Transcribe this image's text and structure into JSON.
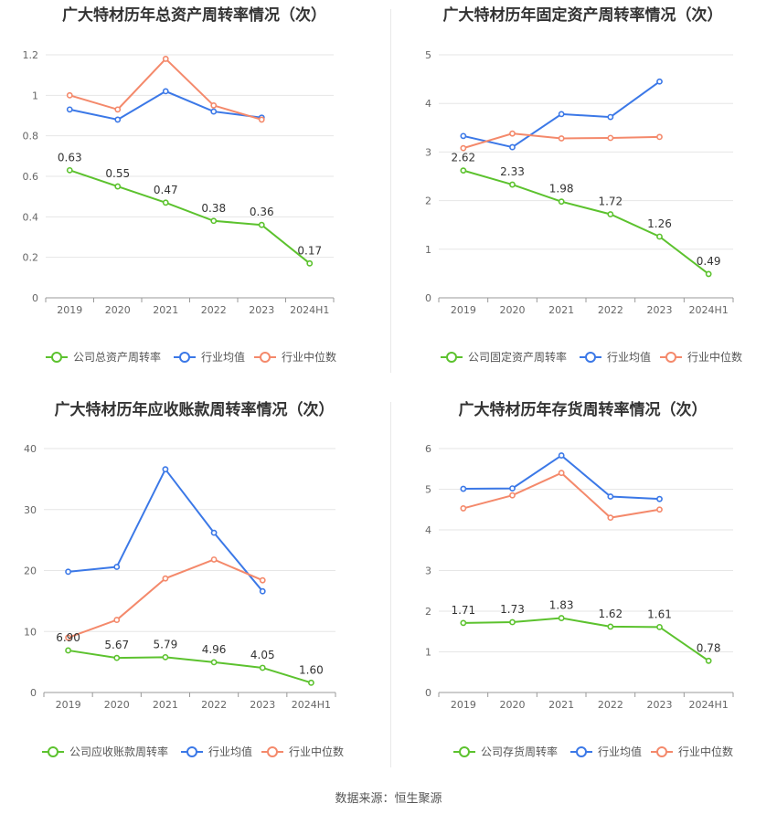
{
  "colors": {
    "company": "#5cc22e",
    "industry_avg": "#3b78e7",
    "industry_median": "#f4896b",
    "grid": "#e6e6e6",
    "axis": "#999999"
  },
  "footer": {
    "source": "数据来源：恒生聚源"
  },
  "chart_data": [
    {
      "type": "line",
      "title": "广大特材历年总资产周转率情况（次）",
      "categories": [
        "2019",
        "2020",
        "2021",
        "2022",
        "2023",
        "2024H1"
      ],
      "ylim": [
        0,
        1.2
      ],
      "yticks": [
        "0",
        "0.2",
        "0.4",
        "0.6",
        "0.8",
        "1",
        "1.2"
      ],
      "ytick_values": [
        0,
        0.2,
        0.4,
        0.6,
        0.8,
        1.0,
        1.2
      ],
      "series": [
        {
          "name": "公司总资产周转率",
          "color": "#5cc22e",
          "values": [
            0.63,
            0.55,
            0.47,
            0.38,
            0.36,
            0.17
          ],
          "labels": [
            "0.63",
            "0.55",
            "0.47",
            "0.38",
            "0.36",
            "0.17"
          ]
        },
        {
          "name": "行业均值",
          "color": "#3b78e7",
          "values": [
            0.93,
            0.88,
            1.02,
            0.92,
            0.89,
            null
          ]
        },
        {
          "name": "行业中位数",
          "color": "#f4896b",
          "values": [
            1.0,
            0.93,
            1.18,
            0.95,
            0.88,
            null
          ]
        }
      ],
      "legend": "bottom"
    },
    {
      "type": "line",
      "title": "广大特材历年固定资产周转率情况（次）",
      "categories": [
        "2019",
        "2020",
        "2021",
        "2022",
        "2023",
        "2024H1"
      ],
      "ylim": [
        0,
        5
      ],
      "yticks": [
        "0",
        "1",
        "2",
        "3",
        "4",
        "5"
      ],
      "ytick_values": [
        0,
        1,
        2,
        3,
        4,
        5
      ],
      "series": [
        {
          "name": "公司固定资产周转率",
          "color": "#5cc22e",
          "values": [
            2.62,
            2.33,
            1.98,
            1.72,
            1.26,
            0.49
          ],
          "labels": [
            "2.62",
            "2.33",
            "1.98",
            "1.72",
            "1.26",
            "0.49"
          ]
        },
        {
          "name": "行业均值",
          "color": "#3b78e7",
          "values": [
            3.33,
            3.1,
            3.78,
            3.72,
            4.45,
            null
          ]
        },
        {
          "name": "行业中位数",
          "color": "#f4896b",
          "values": [
            3.08,
            3.38,
            3.28,
            3.29,
            3.31,
            null
          ]
        }
      ],
      "legend": "bottom"
    },
    {
      "type": "line",
      "title": "广大特材历年应收账款周转率情况（次）",
      "categories": [
        "2019",
        "2020",
        "2021",
        "2022",
        "2023",
        "2024H1"
      ],
      "ylim": [
        0,
        40
      ],
      "yticks": [
        "0",
        "10",
        "20",
        "30",
        "40"
      ],
      "ytick_values": [
        0,
        10,
        20,
        30,
        40
      ],
      "series": [
        {
          "name": "公司应收账款周转率",
          "color": "#5cc22e",
          "values": [
            6.9,
            5.67,
            5.79,
            4.96,
            4.05,
            1.6
          ],
          "labels": [
            "6.90",
            "5.67",
            "5.79",
            "4.96",
            "4.05",
            "1.60"
          ]
        },
        {
          "name": "行业均值",
          "color": "#3b78e7",
          "values": [
            19.8,
            20.6,
            36.6,
            26.2,
            16.6,
            null
          ]
        },
        {
          "name": "行业中位数",
          "color": "#f4896b",
          "values": [
            9.0,
            11.9,
            18.7,
            21.8,
            18.4,
            null
          ]
        }
      ],
      "legend": "bottom"
    },
    {
      "type": "line",
      "title": "广大特材历年存货周转率情况（次）",
      "categories": [
        "2019",
        "2020",
        "2021",
        "2022",
        "2023",
        "2024H1"
      ],
      "ylim": [
        0,
        6
      ],
      "yticks": [
        "0",
        "1",
        "2",
        "3",
        "4",
        "5",
        "6"
      ],
      "ytick_values": [
        0,
        1,
        2,
        3,
        4,
        5,
        6
      ],
      "series": [
        {
          "name": "公司存货周转率",
          "color": "#5cc22e",
          "values": [
            1.71,
            1.73,
            1.83,
            1.62,
            1.61,
            0.78
          ],
          "labels": [
            "1.71",
            "1.73",
            "1.83",
            "1.62",
            "1.61",
            "0.78"
          ]
        },
        {
          "name": "行业均值",
          "color": "#3b78e7",
          "values": [
            5.01,
            5.02,
            5.83,
            4.82,
            4.76,
            null
          ]
        },
        {
          "name": "行业中位数",
          "color": "#f4896b",
          "values": [
            4.53,
            4.85,
            5.4,
            4.3,
            4.5,
            null
          ]
        }
      ],
      "legend": "bottom"
    }
  ]
}
